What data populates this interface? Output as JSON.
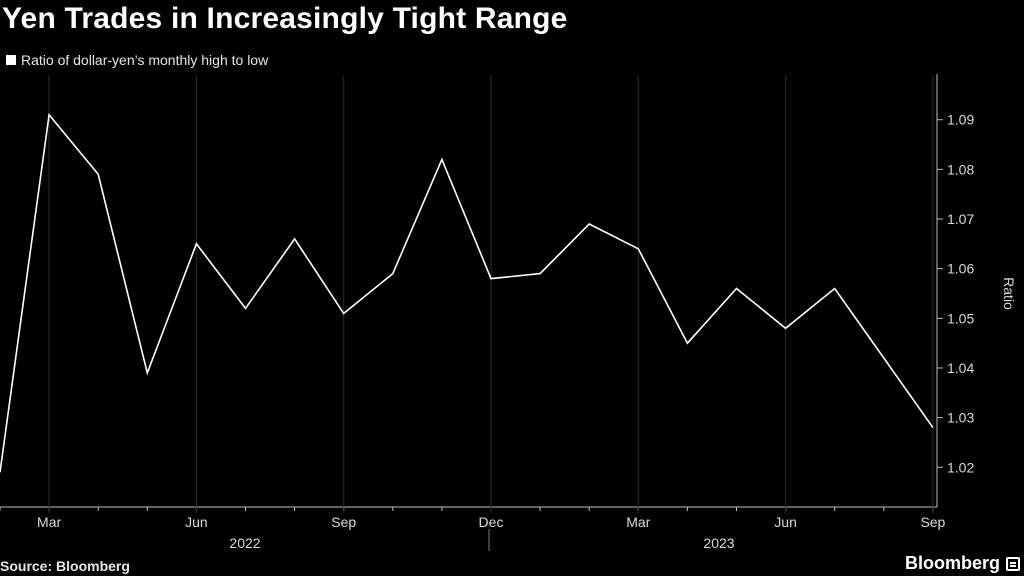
{
  "title": "Yen Trades in Increasingly Tight Range",
  "source": "Source: Bloomberg",
  "brand": "Bloomberg",
  "colors": {
    "background": "#000000",
    "line": "#ffffff",
    "grid": "#333333"
  },
  "chart_data": {
    "type": "line",
    "title": "Yen Trades in Increasingly Tight Range",
    "ylabel": "Ratio",
    "ylim": [
      1.012,
      1.098
    ],
    "yticks": [
      "1.02",
      "1.03",
      "1.04",
      "1.05",
      "1.06",
      "1.07",
      "1.08",
      "1.09"
    ],
    "xticks": [
      "Mar",
      "Jun",
      "Sep",
      "Dec",
      "Mar",
      "Jun",
      "Sep"
    ],
    "year_labels": [
      "2022",
      "2023"
    ],
    "grid": false,
    "legend_position": "top-left",
    "series": [
      {
        "name": "Ratio of dollar-yen’s monthly high to low",
        "x": [
          "2022-02",
          "2022-03",
          "2022-04",
          "2022-05",
          "2022-06",
          "2022-07",
          "2022-08",
          "2022-09",
          "2022-10",
          "2022-11",
          "2022-12",
          "2023-01",
          "2023-02",
          "2023-03",
          "2023-04",
          "2023-05",
          "2023-06",
          "2023-07",
          "2023-08",
          "2023-09"
        ],
        "values": [
          1.019,
          1.091,
          1.079,
          1.039,
          1.065,
          1.052,
          1.066,
          1.051,
          1.059,
          1.082,
          1.058,
          1.059,
          1.069,
          1.064,
          1.045,
          1.056,
          1.048,
          1.056,
          1.042,
          1.028
        ]
      }
    ]
  }
}
